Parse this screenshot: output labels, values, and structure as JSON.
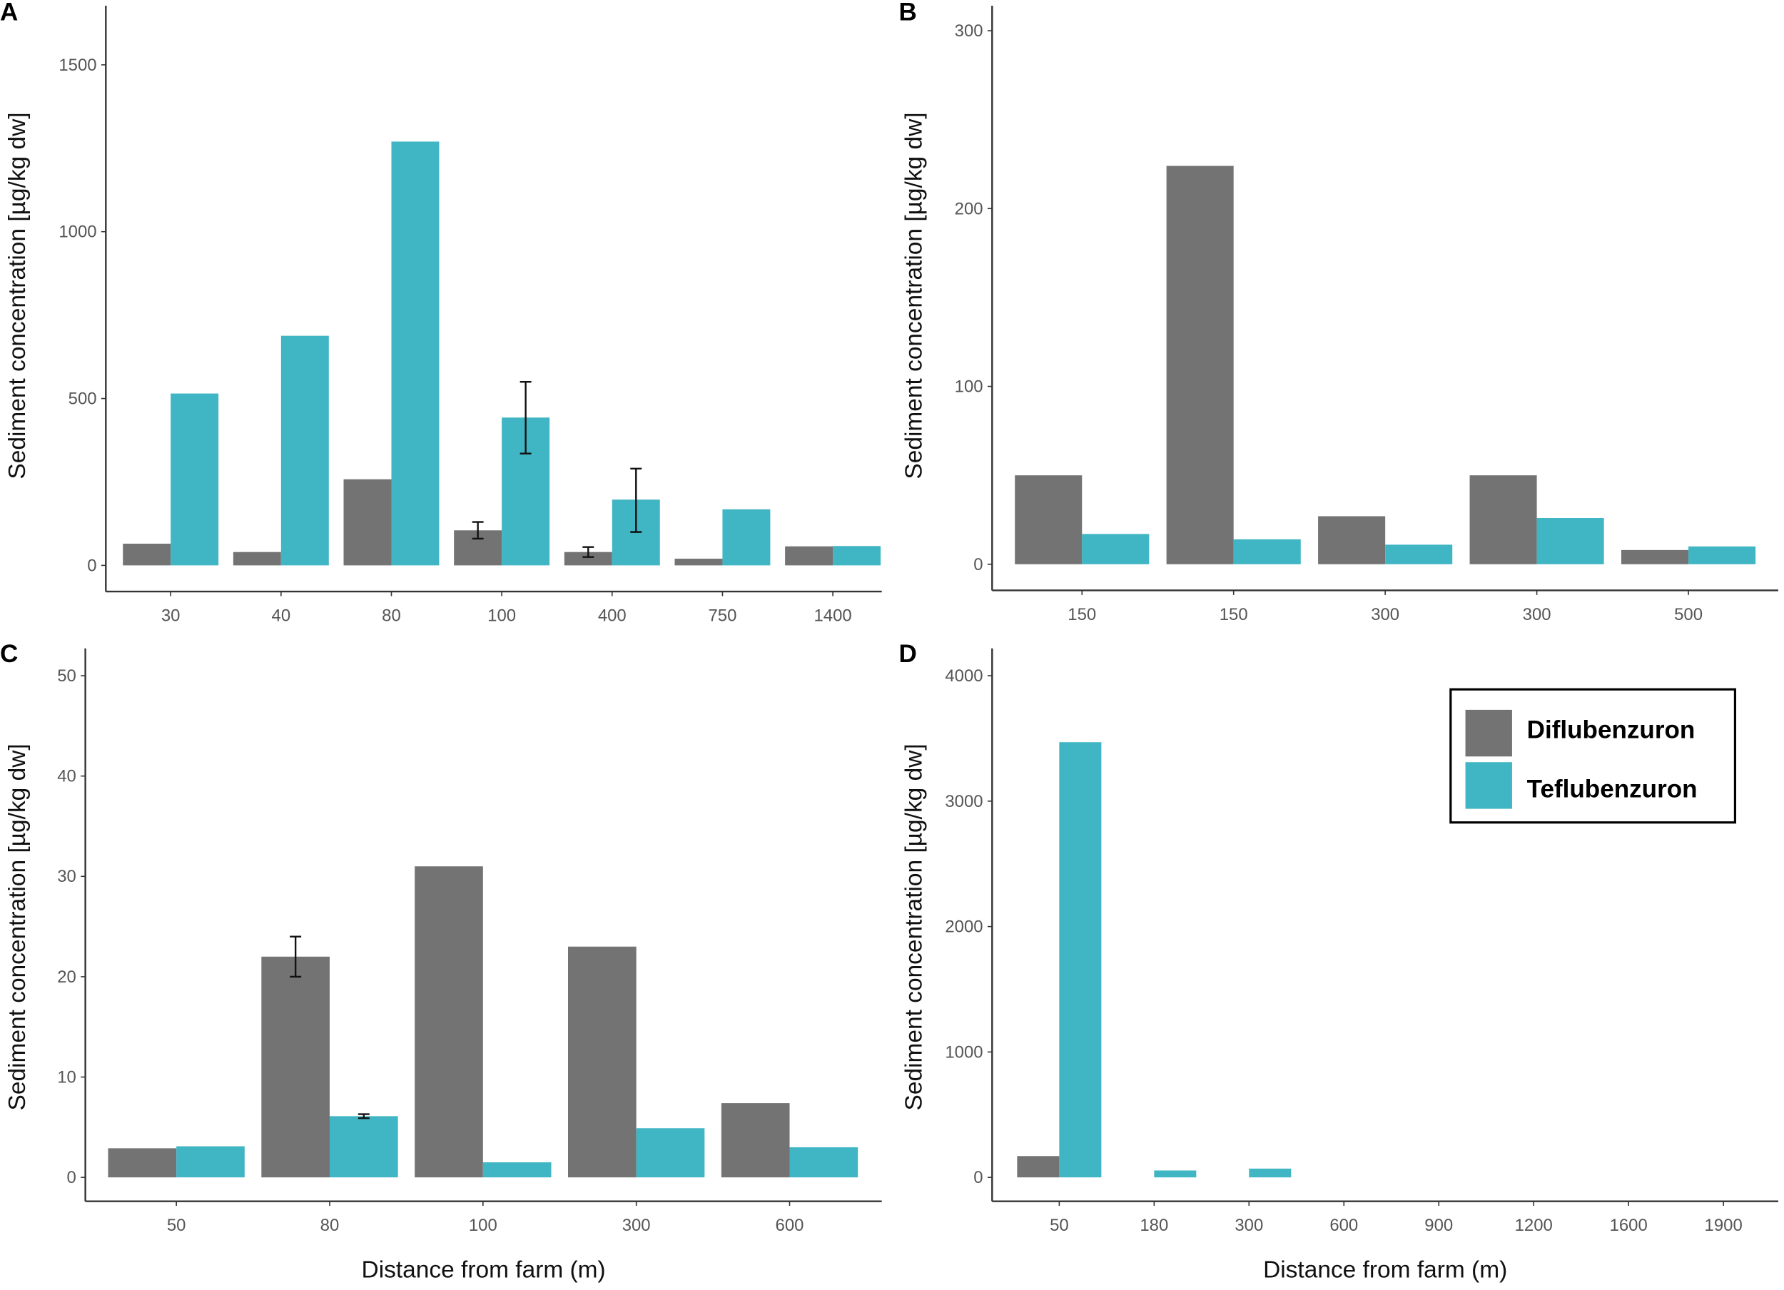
{
  "colors": {
    "Diflubenzuron": "#737373",
    "Teflubenzuron": "#40b5c3",
    "axis": "#333333",
    "error": "#111111"
  },
  "legend": {
    "position": "top-right of panel D",
    "items": [
      "Diflubenzuron",
      "Teflubenzuron"
    ]
  },
  "chart_data": [
    {
      "type": "bar",
      "panel": "A",
      "ylabel": "Sediment concentration [µg/kg dw]",
      "xlabel": "",
      "ylim": [
        0,
        1500
      ],
      "yticks": [
        0,
        500,
        1000,
        1500
      ],
      "categories": [
        "30",
        "40",
        "80",
        "100",
        "400",
        "750",
        "1400"
      ],
      "series": [
        {
          "name": "Diflubenzuron",
          "values": [
            65,
            40,
            258,
            105,
            40,
            20,
            57
          ],
          "errors": [
            null,
            null,
            null,
            [
              80,
              130
            ],
            [
              25,
              55
            ],
            null,
            null
          ]
        },
        {
          "name": "Teflubenzuron",
          "values": [
            515,
            688,
            1270,
            443,
            197,
            168,
            58
          ],
          "errors": [
            null,
            null,
            null,
            [
              335,
              550
            ],
            [
              100,
              290
            ],
            null,
            null
          ]
        }
      ]
    },
    {
      "type": "bar",
      "panel": "B",
      "ylabel": "Sediment concentration [µg/kg dw]",
      "xlabel": "",
      "ylim": [
        0,
        300
      ],
      "yticks": [
        0,
        100,
        200,
        300
      ],
      "categories": [
        "150",
        "150",
        "300",
        "300",
        "500"
      ],
      "series": [
        {
          "name": "Diflubenzuron",
          "values": [
            50,
            224,
            27,
            50,
            8
          ],
          "errors": [
            null,
            null,
            null,
            null,
            null
          ]
        },
        {
          "name": "Teflubenzuron",
          "values": [
            17,
            14,
            11,
            26,
            10
          ],
          "errors": [
            null,
            null,
            null,
            null,
            null
          ]
        }
      ]
    },
    {
      "type": "bar",
      "panel": "C",
      "ylabel": "Sediment concentration [µg/kg dw]",
      "xlabel": "Distance from farm (m)",
      "ylim": [
        0,
        50
      ],
      "yticks": [
        0,
        10,
        20,
        30,
        40,
        50
      ],
      "categories": [
        "50",
        "80",
        "100",
        "300",
        "600"
      ],
      "series": [
        {
          "name": "Diflubenzuron",
          "values": [
            2.9,
            22,
            31,
            23,
            7.4
          ],
          "errors": [
            null,
            [
              20,
              24
            ],
            null,
            null,
            null
          ]
        },
        {
          "name": "Teflubenzuron",
          "values": [
            3.1,
            6.1,
            1.5,
            4.9,
            3.0
          ],
          "errors": [
            null,
            [
              5.9,
              6.3
            ],
            null,
            null,
            null
          ]
        }
      ]
    },
    {
      "type": "bar",
      "panel": "D",
      "ylabel": "Sediment concentration [µg/kg dw]",
      "xlabel": "Distance from farm (m)",
      "ylim": [
        0,
        4000
      ],
      "yticks": [
        0,
        1000,
        2000,
        3000,
        4000
      ],
      "categories": [
        "50",
        "180",
        "300",
        "600",
        "900",
        "1200",
        "1600",
        "1900"
      ],
      "series": [
        {
          "name": "Diflubenzuron",
          "values": [
            170,
            0,
            0,
            0,
            0,
            0,
            0,
            0
          ],
          "errors": [
            null,
            null,
            null,
            null,
            null,
            null,
            null,
            null
          ]
        },
        {
          "name": "Teflubenzuron",
          "values": [
            3470,
            55,
            70,
            0,
            0,
            0,
            0,
            0
          ],
          "errors": [
            null,
            null,
            null,
            null,
            null,
            null,
            null,
            null
          ]
        }
      ]
    }
  ]
}
